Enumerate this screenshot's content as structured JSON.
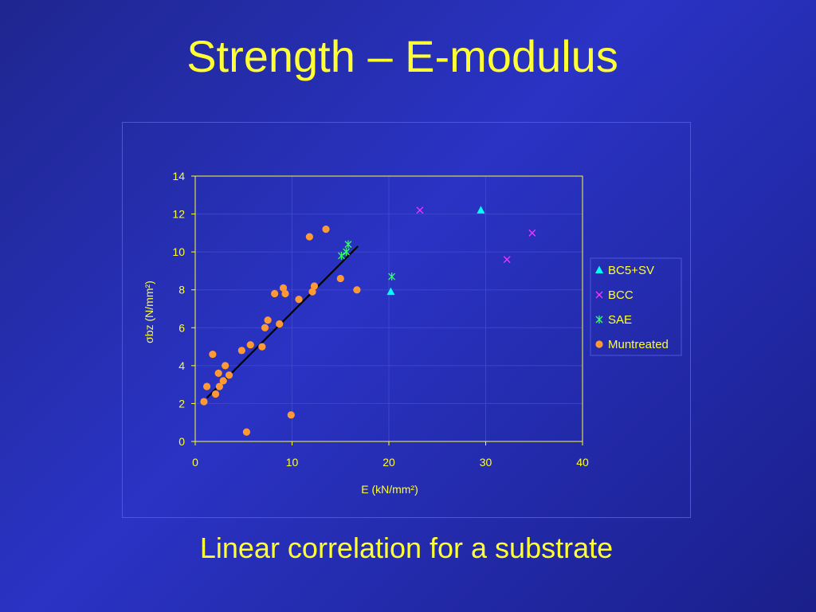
{
  "slide": {
    "title": "Strength – E-modulus",
    "subtitle": "Linear correlation for a substrate"
  },
  "colors": {
    "title_text": "#ffff33",
    "axis_text": "#ffff33",
    "grid": "#3c45cc",
    "axis_line": "#ffff33",
    "BC5+SV": "#00ffff",
    "BCC": "#ff33ff",
    "SAE": "#33ff66",
    "Muntreated": "#ff9933",
    "trendline": "#000000"
  },
  "chart_data": {
    "type": "scatter",
    "title": "",
    "xlabel": "E (kN/mm²)",
    "ylabel": "σbz (N/mm²)",
    "xlim": [
      0,
      40
    ],
    "ylim": [
      0,
      14
    ],
    "x_ticks": [
      "0",
      "10",
      "20",
      "30",
      "40"
    ],
    "y_ticks": [
      "0",
      "2",
      "4",
      "6",
      "8",
      "10",
      "12",
      "14"
    ],
    "grid": true,
    "legend_position": "right",
    "series": [
      {
        "name": "BC5+SV",
        "marker": "triangle",
        "points": [
          [
            20.2,
            7.9
          ],
          [
            29.5,
            12.2
          ]
        ]
      },
      {
        "name": "BCC",
        "marker": "x",
        "points": [
          [
            23.2,
            12.2
          ],
          [
            32.2,
            9.6
          ],
          [
            34.8,
            11.0
          ]
        ]
      },
      {
        "name": "SAE",
        "marker": "asterisk",
        "points": [
          [
            15.1,
            9.8
          ],
          [
            15.6,
            10.0
          ],
          [
            15.8,
            10.4
          ],
          [
            20.3,
            8.7
          ]
        ]
      },
      {
        "name": "Muntreated",
        "marker": "circle",
        "points": [
          [
            0.9,
            2.1
          ],
          [
            1.2,
            2.9
          ],
          [
            1.8,
            4.6
          ],
          [
            2.1,
            2.5
          ],
          [
            2.4,
            3.6
          ],
          [
            2.5,
            2.9
          ],
          [
            2.9,
            3.2
          ],
          [
            3.1,
            4.0
          ],
          [
            3.5,
            3.5
          ],
          [
            4.8,
            4.8
          ],
          [
            5.3,
            0.5
          ],
          [
            5.7,
            5.1
          ],
          [
            6.9,
            5.0
          ],
          [
            7.2,
            6.0
          ],
          [
            7.5,
            6.4
          ],
          [
            8.2,
            7.8
          ],
          [
            8.7,
            6.2
          ],
          [
            9.1,
            8.1
          ],
          [
            9.3,
            7.8
          ],
          [
            9.9,
            1.4
          ],
          [
            10.7,
            7.5
          ],
          [
            11.8,
            10.8
          ],
          [
            12.1,
            7.9
          ],
          [
            12.3,
            8.2
          ],
          [
            13.5,
            11.2
          ],
          [
            15.0,
            8.6
          ],
          [
            16.7,
            8.0
          ]
        ]
      }
    ],
    "trendline": {
      "x": [
        1.2,
        16.8
      ],
      "y": [
        2.3,
        10.3
      ]
    }
  }
}
